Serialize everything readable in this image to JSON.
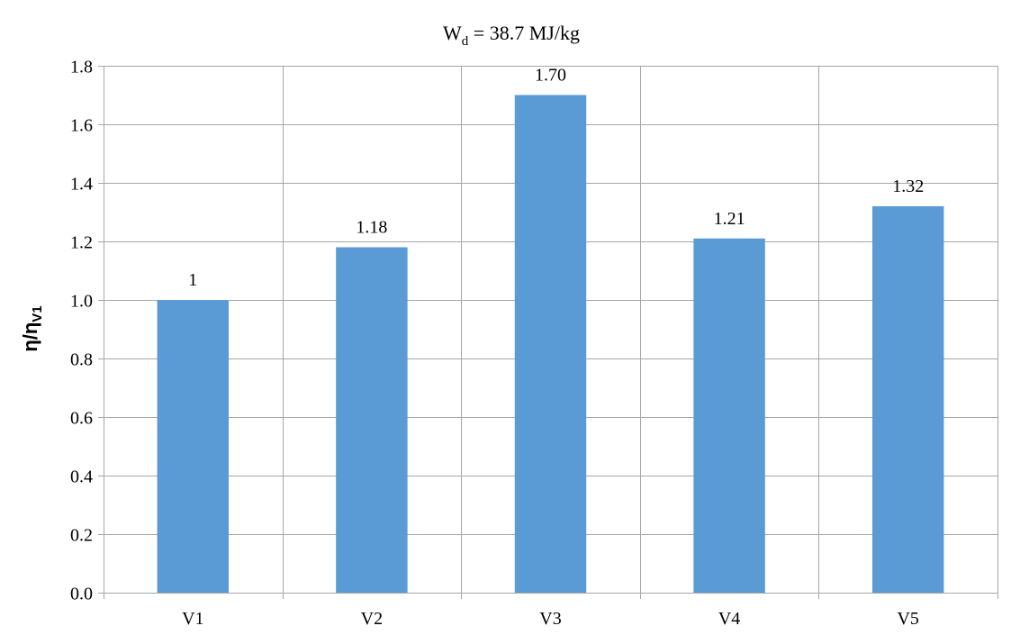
{
  "chart_data": {
    "type": "bar",
    "title": {
      "main": "W",
      "sub": "d",
      "rest": " = 38.7 MJ/kg"
    },
    "ylabel": {
      "main": "η/η",
      "sub": "V1"
    },
    "xlabel": "",
    "categories": [
      "V1",
      "V2",
      "V3",
      "V4",
      "V5"
    ],
    "values": [
      1.0,
      1.18,
      1.7,
      1.21,
      1.32
    ],
    "data_labels": [
      "1",
      "1.18",
      "1.70",
      "1.21",
      "1.32"
    ],
    "ylim": [
      0,
      1.8
    ],
    "yticks": [
      0,
      0.2,
      0.4,
      0.6,
      0.8,
      1.0,
      1.2,
      1.4,
      1.6,
      1.8
    ],
    "ytick_labels": [
      "0.0",
      "0.2",
      "0.4",
      "0.6",
      "0.8",
      "1.0",
      "1.2",
      "1.4",
      "1.6",
      "1.8"
    ],
    "grid": true,
    "legend": "none",
    "bar_color": "#5b9bd5",
    "grid_color": "#a6a6a6"
  }
}
